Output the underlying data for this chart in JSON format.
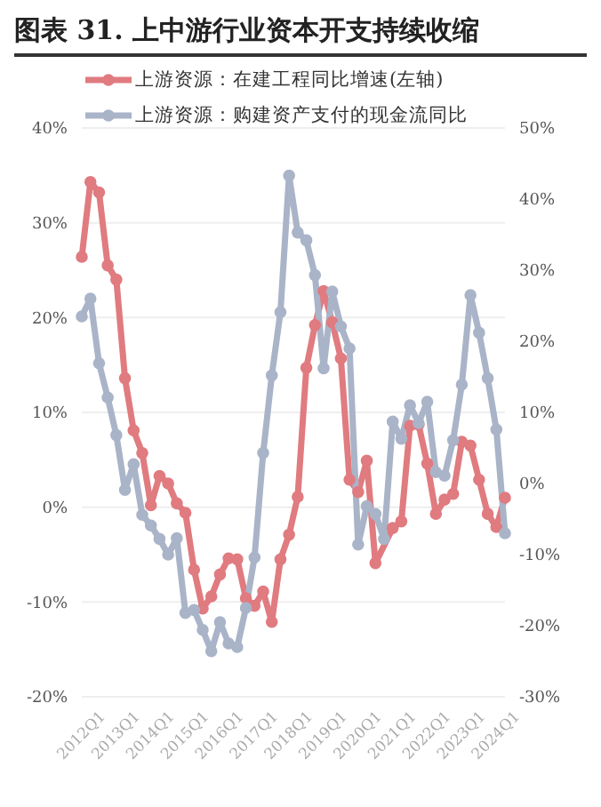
{
  "chart_data": {
    "type": "line",
    "title": "图表 31. 上中游行业资本开支持续收缩",
    "categories": [
      "2012Q1",
      null,
      null,
      null,
      "2013Q1",
      null,
      null,
      null,
      "2014Q1",
      null,
      null,
      null,
      "2015Q1",
      null,
      null,
      null,
      "2016Q1",
      null,
      null,
      null,
      "2017Q1",
      null,
      null,
      null,
      "2018Q1",
      null,
      null,
      null,
      "2019Q1",
      null,
      null,
      null,
      "2020Q1",
      null,
      null,
      null,
      "2021Q1",
      null,
      null,
      null,
      "2022Q1",
      null,
      null,
      null,
      "2023Q1",
      null,
      null,
      null,
      "2024Q1",
      null
    ],
    "series": [
      {
        "name": "上游资源：在建工程同比增速(左轴)",
        "color": "#e07b80",
        "values": [
          26.4,
          34.3,
          33.2,
          25.5,
          24.0,
          13.6,
          8.1,
          5.7,
          0.2,
          3.3,
          2.5,
          0.4,
          -0.6,
          -6.6,
          -10.7,
          -9.4,
          -7.1,
          -5.4,
          -5.5,
          -9.6,
          -10.4,
          -8.9,
          -12.1,
          -5.5,
          -2.9,
          1.1,
          14.7,
          19.2,
          22.8,
          19.5,
          15.7,
          2.9,
          1.6,
          4.9,
          -5.9,
          null,
          -2.2,
          -1.5,
          8.6,
          8.7,
          4.6,
          -0.7,
          0.8,
          1.4,
          6.9,
          6.5,
          2.9,
          -0.7,
          -2.1,
          1.0
        ]
      },
      {
        "name": "上游资源：购建资产支付的现金流同比",
        "color": "#a9b4c8",
        "axis": "y2",
        "values": [
          23.5,
          26.0,
          16.9,
          12.1,
          6.8,
          -0.9,
          2.7,
          -4.4,
          -5.9,
          -7.8,
          -10.0,
          -7.7,
          -18.2,
          -17.8,
          -20.6,
          -23.6,
          -19.5,
          -22.5,
          -23.0,
          -17.5,
          -10.4,
          4.3,
          15.2,
          24.1,
          43.3,
          35.3,
          34.2,
          29.3,
          16.2,
          27.0,
          22.1,
          19.0,
          -8.6,
          -3.2,
          -4.3,
          -7.8,
          8.7,
          6.3,
          11.0,
          8.5,
          11.5,
          1.6,
          1.1,
          6.1,
          13.9,
          26.5,
          21.2,
          14.8,
          7.6,
          -7.0
        ]
      }
    ],
    "ylim": [
      -20,
      40
    ],
    "yticks": [
      {
        "value": -20,
        "label": "-20%"
      },
      {
        "value": -10,
        "label": "-10%"
      },
      {
        "value": 0,
        "label": "0%"
      },
      {
        "value": 10,
        "label": "10%"
      },
      {
        "value": 20,
        "label": "20%"
      },
      {
        "value": 30,
        "label": "30%"
      },
      {
        "value": 40,
        "label": "40%"
      }
    ],
    "y2lim": [
      -30,
      50
    ],
    "y2ticks": [
      {
        "value": -30,
        "label": "-30%"
      },
      {
        "value": -20,
        "label": "-20%"
      },
      {
        "value": -10,
        "label": "-10%"
      },
      {
        "value": 0,
        "label": "0%"
      },
      {
        "value": 10,
        "label": "10%"
      },
      {
        "value": 20,
        "label": "20%"
      },
      {
        "value": 30,
        "label": "30%"
      },
      {
        "value": 40,
        "label": "40%"
      },
      {
        "value": 50,
        "label": "50%"
      }
    ],
    "grid": "y",
    "legend": "top",
    "marker": "circle",
    "line_style": "solid"
  }
}
